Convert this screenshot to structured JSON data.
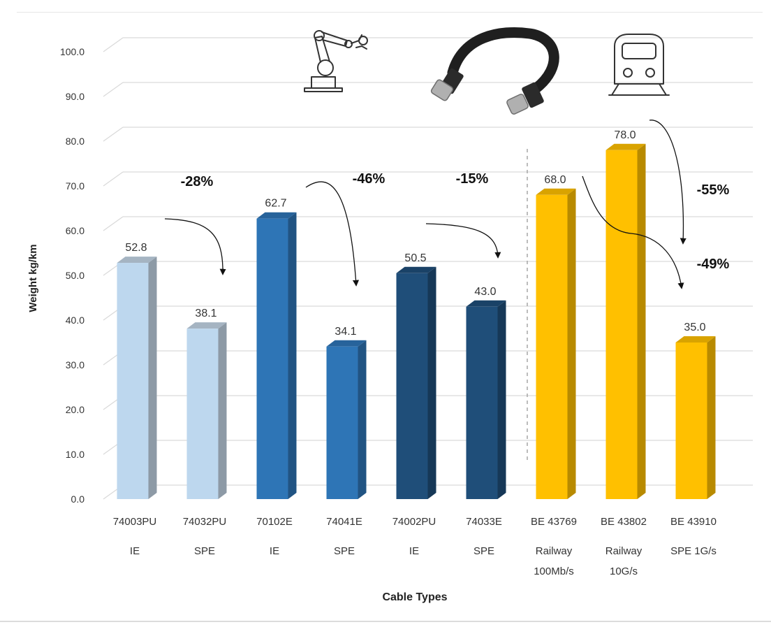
{
  "chart_data": {
    "type": "bar",
    "title": "",
    "xlabel": "Cable Types",
    "ylabel": "Weight kg/km",
    "ylim": [
      0,
      100
    ],
    "ytick_step": 10,
    "ytick_labels": [
      "0.0",
      "10.0",
      "20.0",
      "30.0",
      "40.0",
      "50.0",
      "60.0",
      "70.0",
      "80.0",
      "90.0",
      "100.0"
    ],
    "categories": [
      {
        "code": "74003PU",
        "type": "IE",
        "type2": ""
      },
      {
        "code": "74032PU",
        "type": "SPE",
        "type2": ""
      },
      {
        "code": "70102E",
        "type": "IE",
        "type2": ""
      },
      {
        "code": "74041E",
        "type": "SPE",
        "type2": ""
      },
      {
        "code": "74002PU",
        "type": "IE",
        "type2": ""
      },
      {
        "code": "74033E",
        "type": "SPE",
        "type2": ""
      },
      {
        "code": "BE 43769",
        "type": "Railway",
        "type2": "100Mb/s"
      },
      {
        "code": "BE 43802",
        "type": "Railway",
        "type2": "10G/s"
      },
      {
        "code": "BE 43910",
        "type": "SPE 1G/s",
        "type2": ""
      }
    ],
    "values": [
      52.8,
      38.1,
      62.7,
      34.1,
      50.5,
      43.0,
      68.0,
      78.0,
      35.0
    ],
    "value_labels": [
      "52.8",
      "38.1",
      "62.7",
      "34.1",
      "50.5",
      "43.0",
      "68.0",
      "78.0",
      "35.0"
    ],
    "bar_colors": [
      "#bdd7ee",
      "#bdd7ee",
      "#2e75b6",
      "#2e75b6",
      "#1f4e79",
      "#1f4e79",
      "#ffc000",
      "#ffc000",
      "#ffc000"
    ],
    "annotations": [
      {
        "label": "-28%",
        "from": 0,
        "to": 1
      },
      {
        "label": "-46%",
        "from": 2,
        "to": 3
      },
      {
        "label": "-15%",
        "from": 4,
        "to": 5
      },
      {
        "label": "-55%",
        "from": 7,
        "to": 8
      },
      {
        "label": "-49%",
        "from": 6,
        "to": 8
      }
    ],
    "icons": [
      "robot-arm-icon",
      "ethernet-cable-icon",
      "train-icon"
    ],
    "grid": true,
    "legend": "none"
  }
}
